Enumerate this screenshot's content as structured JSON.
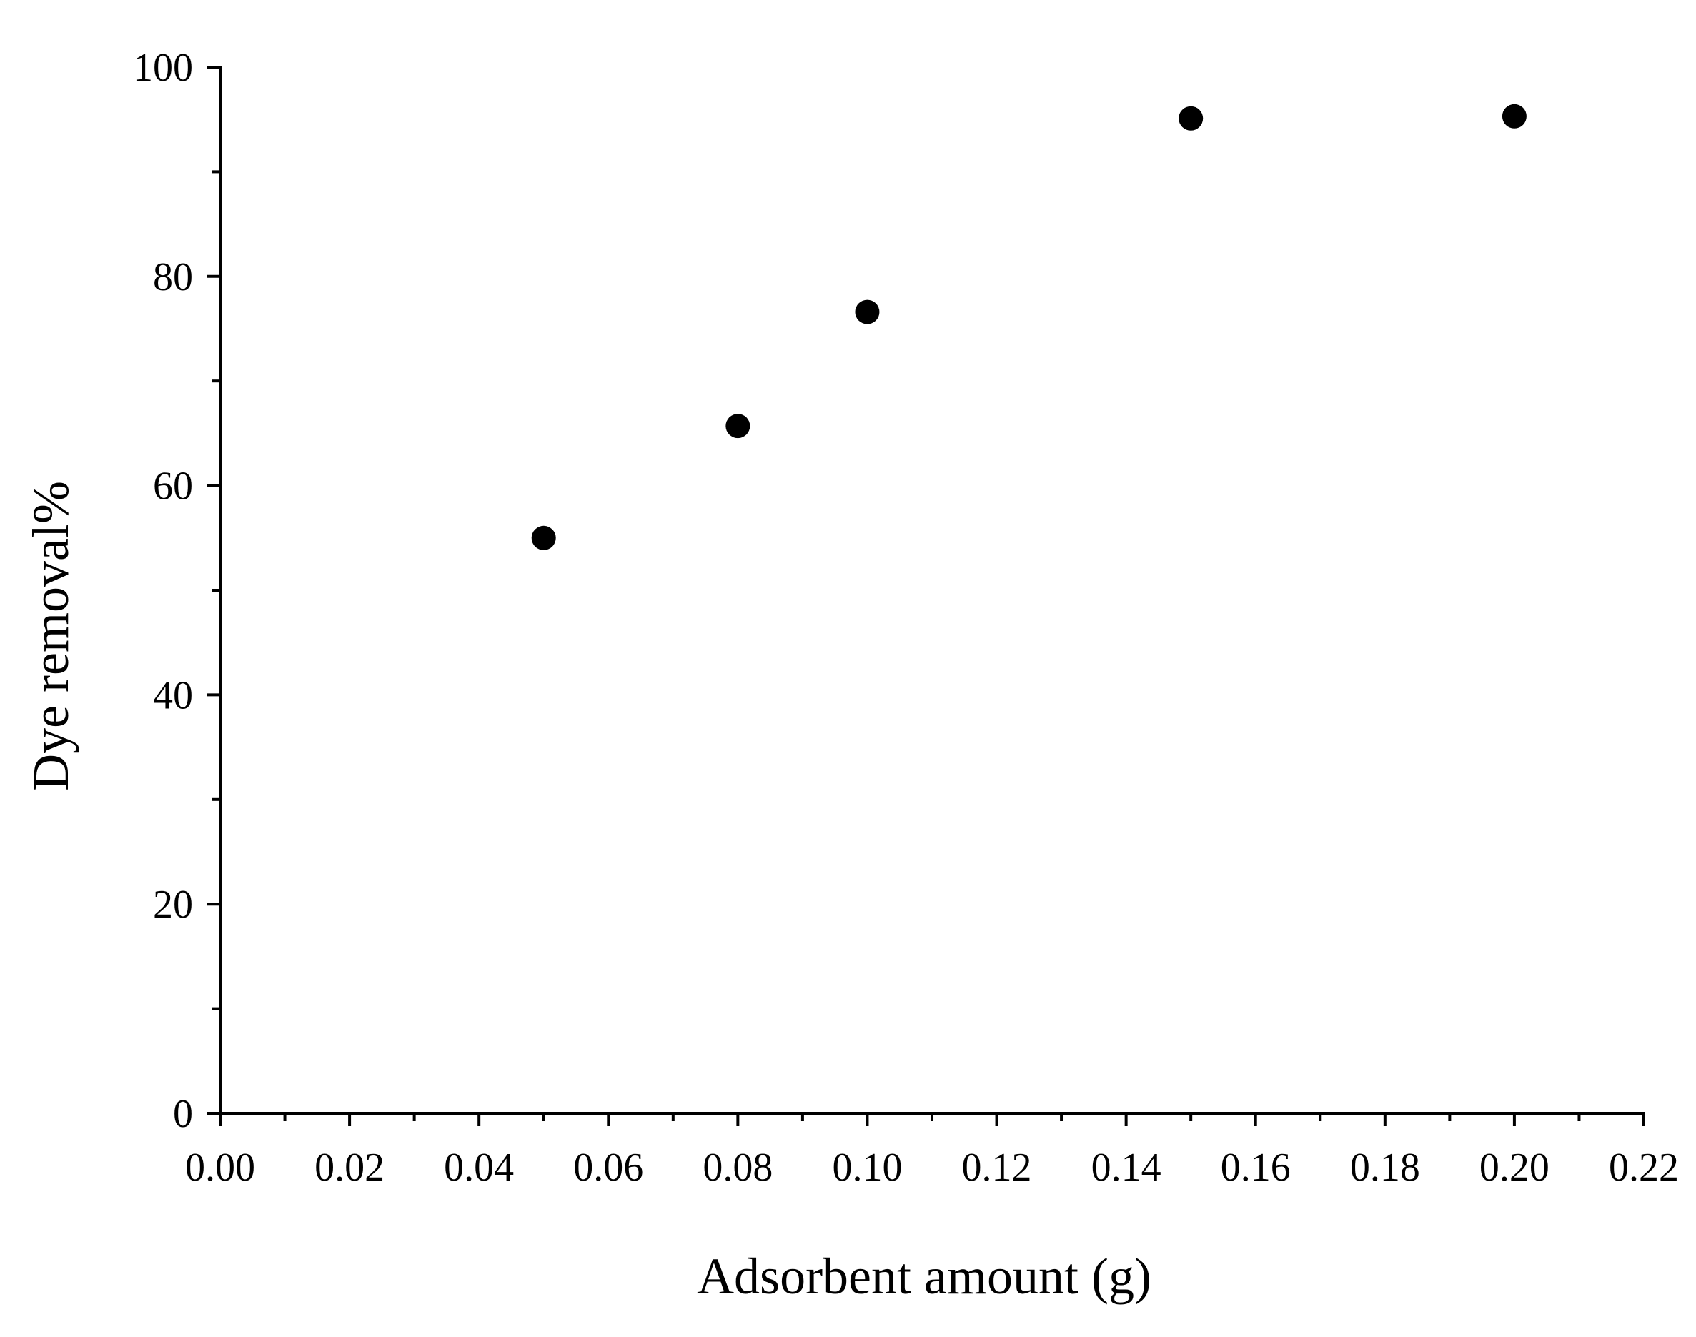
{
  "chart_data": {
    "type": "scatter",
    "title": "",
    "xlabel": "Adsorbent amount (g)",
    "ylabel": "Dye removal%",
    "xlim": [
      0,
      0.22
    ],
    "ylim": [
      0,
      100
    ],
    "x_ticks": [
      "0.00",
      "0.02",
      "0.04",
      "0.06",
      "0.08",
      "0.10",
      "0.12",
      "0.14",
      "0.16",
      "0.18",
      "0.20",
      "0.22"
    ],
    "y_ticks": [
      "0",
      "20",
      "40",
      "60",
      "80",
      "100"
    ],
    "x_minor_step": 0.01,
    "y_minor_step": 10,
    "grid": false,
    "legend": "none",
    "marker": "filled-circle",
    "marker_color": "#000000",
    "series": [
      {
        "x": [
          0.05,
          0.08,
          0.1,
          0.15,
          0.2
        ],
        "y": [
          55.0,
          65.7,
          76.6,
          95.1,
          95.3
        ]
      }
    ]
  }
}
